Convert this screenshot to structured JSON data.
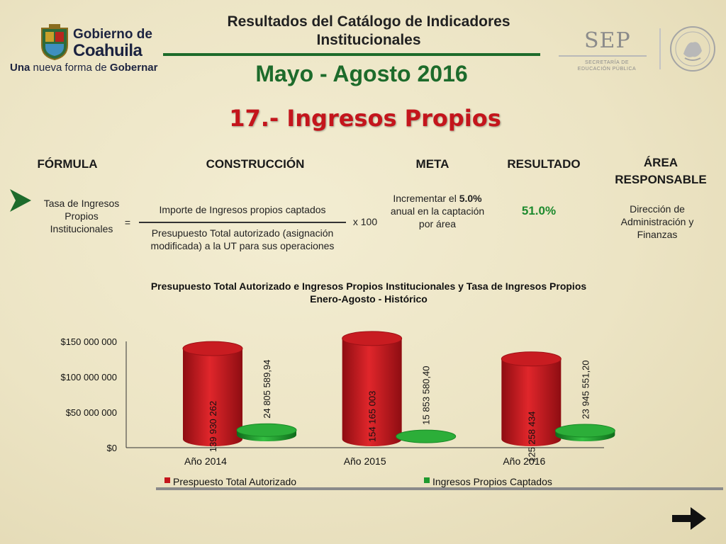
{
  "header": {
    "logo": {
      "line1": "Gobierno de",
      "line2": "Coahuila"
    },
    "tagline_bold1": "Una",
    "tagline_mid": " nueva forma de ",
    "tagline_bold2": "Gobernar",
    "title_line1": "Resultados del Catálogo de Indicadores",
    "title_line2": "Institucionales",
    "period": "Mayo - Agosto 2016",
    "indicator": "17.- Ingresos Propios",
    "sep": {
      "name": "SEP",
      "sub_line1": "SECRETARÍA DE",
      "sub_line2": "EDUCACIÓN PÚBLICA"
    },
    "colors": {
      "green": "#1d6b2b",
      "red": "#c4151c"
    }
  },
  "columns": {
    "formula": "FÓRMULA",
    "construccion": "CONSTRUCCIÓN",
    "meta": "META",
    "resultado": "RESULTADO",
    "area_line1": "ÁREA",
    "area_line2": "RESPONSABLE"
  },
  "formula": {
    "name_line1": "Tasa de Ingresos",
    "name_line2": "Propios",
    "name_line3": "Institucionales",
    "equals": "=",
    "numerator": "Importe de Ingresos propios captados",
    "denominator_line1": "Presupuesto Total autorizado (asignación",
    "denominator_line2": "modificada) a la UT para sus operaciones",
    "multiplier": "x 100"
  },
  "meta": {
    "line1_pre": "Incrementar el ",
    "line1_bold": "5.0%",
    "line2": "anual en la captación",
    "line3": "por área"
  },
  "resultado": "51.0%",
  "area": {
    "line1": "Dirección de",
    "line2": "Administración y",
    "line3": "Finanzas"
  },
  "chart_data": {
    "type": "bar",
    "title": "Presupuesto Total Autorizado e Ingresos Propios Institucionales y Tasa de Ingresos Propios",
    "subtitle": "Enero-Agosto - Histórico",
    "categories": [
      "Año 2014",
      "Año 2015",
      "Año 2016"
    ],
    "ylim": [
      0,
      150000000
    ],
    "y_ticks": [
      "$0",
      "$50 000 000",
      "$100 000 000",
      "$150 000 000"
    ],
    "series": [
      {
        "name": "Prespuesto Total Autorizado",
        "color": "#c4151c",
        "values": [
          139930262,
          154165003,
          125258434
        ],
        "labels": [
          "139 930 262",
          "154 165 003",
          "125 258 434"
        ]
      },
      {
        "name": "Ingresos Propios Captados",
        "color": "#1f9a2e",
        "values": [
          24805589.94,
          15853580.4,
          23945551.2
        ],
        "labels": [
          "24 805 589,94",
          "15 853 580,40",
          "23 945 551,20"
        ]
      }
    ],
    "legend": "bottom",
    "grid": false
  }
}
